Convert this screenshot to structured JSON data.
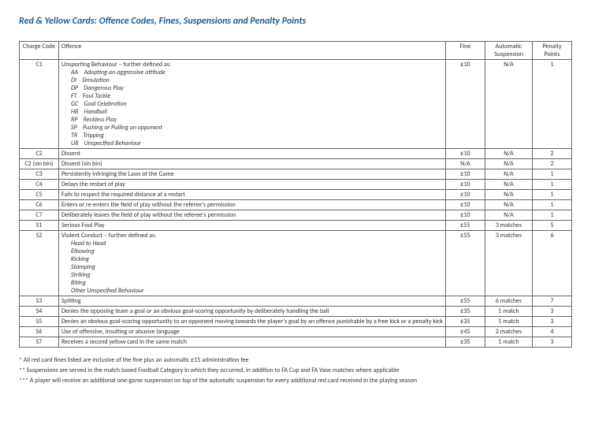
{
  "title": "Red & Yellow Cards: Offence Codes, Fines, Suspensions and Penalty Points",
  "headers": {
    "code": "Charge Code",
    "offence": "Offence",
    "fine": "Fine",
    "suspension": "Automatic Suspension",
    "points": "Penalty Points"
  },
  "rows": {
    "c1": {
      "code": "C1",
      "offence": "Unsporting Behaviour – further defined as:",
      "sub": [
        {
          "k": "AA",
          "v": "Adopting an aggressive attitude"
        },
        {
          "k": "DI",
          "v": "Simulation"
        },
        {
          "k": "DP",
          "v": "Dangerous Play"
        },
        {
          "k": "FT",
          "v": "Foul Tackle"
        },
        {
          "k": "GC",
          "v": "Goal Celebration"
        },
        {
          "k": "HB",
          "v": "Handball"
        },
        {
          "k": "RP",
          "v": "Reckless Play"
        },
        {
          "k": "SP",
          "v": "Pushing or Pulling an opponent"
        },
        {
          "k": "TR",
          "v": "Tripping"
        },
        {
          "k": "UB",
          "v": "Unspecified Behaviour"
        }
      ],
      "fine": "£10",
      "suspension": "N/A",
      "points": "1"
    },
    "c2": {
      "code": "C2",
      "offence": "Dissent",
      "fine": "£10",
      "suspension": "N/A",
      "points": "2"
    },
    "c2sb": {
      "code": "C2 (sin bin)",
      "offence": "Dissent (sin bin)",
      "fine": "N/A",
      "suspension": "N/A",
      "points": "2"
    },
    "c3": {
      "code": "C3",
      "offence": "Persistently infringing the Laws of the Game",
      "fine": "£10",
      "suspension": "N/A",
      "points": "1"
    },
    "c4": {
      "code": "C4",
      "offence": "Delays the restart of play",
      "fine": "£10",
      "suspension": "N/A",
      "points": "1"
    },
    "c5": {
      "code": "C5",
      "offence": "Fails to respect the required distance at a restart",
      "fine": "£10",
      "suspension": "N/A",
      "points": "1"
    },
    "c6": {
      "code": "C6",
      "offence": "Enters or re-enters the field of play without the referee's permission",
      "fine": "£10",
      "suspension": "N/A",
      "points": "1"
    },
    "c7": {
      "code": "C7",
      "offence": "Deliberately leaves the field of play without the referee's permission",
      "fine": "£10",
      "suspension": "N/A",
      "points": "1"
    },
    "s1": {
      "code": "S1",
      "offence": "Serious Foul Play",
      "fine": "£55",
      "suspension": "3 matches",
      "points": "5"
    },
    "s2": {
      "code": "S2",
      "offence": "Violent Conduct – further defined as:",
      "sub": [
        "Head to Head",
        "Elbowing",
        "Kicking",
        "Stamping",
        "Striking",
        "Biting",
        "Other Unspecified Behaviour"
      ],
      "fine": "£55",
      "suspension": "3 matches",
      "points": "6"
    },
    "s3": {
      "code": "S3",
      "offence": "Spitting",
      "fine": "£55",
      "suspension": "6 matches",
      "points": "7"
    },
    "s4": {
      "code": "S4",
      "offence": "Denies the opposing team a goal or an obvious goal-scoring opportunity by deliberately handling the ball",
      "fine": "£35",
      "suspension": "1 match",
      "points": "3"
    },
    "s5": {
      "code": "S5",
      "offence": "Denies an obvious goal-scoring opportunity to an opponent moving towards the player's goal by an offence punishable by a free kick or a penalty kick",
      "fine": "£35",
      "suspension": "1 match",
      "points": "3"
    },
    "s6": {
      "code": "S6",
      "offence": "Use of offensive, insulting or abusive language",
      "fine": "£45",
      "suspension": "2 matches",
      "points": "4"
    },
    "s7": {
      "code": "S7",
      "offence": "Receives a second yellow card in the same match",
      "fine": "£35",
      "suspension": "1 match",
      "points": "3"
    }
  },
  "footnotes": {
    "a": "* All red card fines listed are inclusive of the fine plus an automatic £15 administration fee",
    "b": "** Suspensions are served in the match based Football Category in which they occurred, in addition to FA Cup and FA Vase matches where applicable",
    "c": "*** A player will receive an additional one-game suspension on top of the automatic suspension for every additional red card received in the playing season"
  }
}
